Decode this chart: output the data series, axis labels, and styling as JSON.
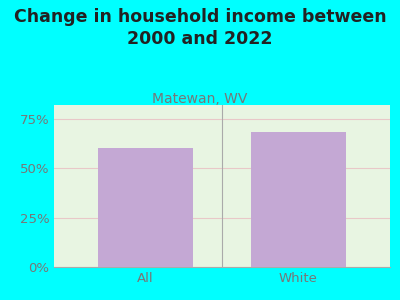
{
  "title": "Change in household income between\n2000 and 2022",
  "subtitle": "Matewan, WV",
  "categories": [
    "All",
    "White"
  ],
  "values": [
    60.0,
    68.5
  ],
  "bar_color": "#C4A8D4",
  "background_color": "#00FFFF",
  "plot_bg_color": "#E8F5E2",
  "title_fontsize": 12.5,
  "subtitle_fontsize": 10,
  "tick_fontsize": 9.5,
  "yticks": [
    0,
    25,
    50,
    75
  ],
  "ylim": [
    0,
    82
  ],
  "tick_color": "#777777",
  "subtitle_color": "#777777",
  "grid_color": "#E8C8C8",
  "bottom_line_color": "#AAAAAA",
  "divider_color": "#AAAAAA"
}
